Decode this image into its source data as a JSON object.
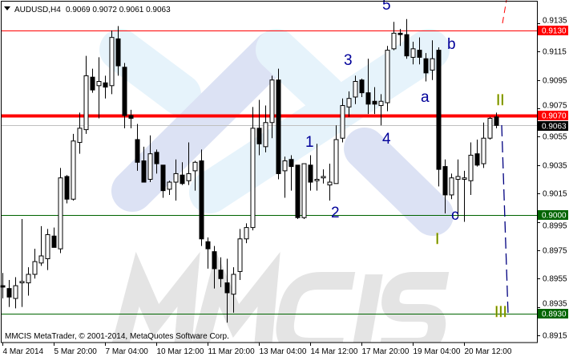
{
  "header": {
    "menu_icon": "triangle-down-icon",
    "symbol": "AUDUSD,H4",
    "ohlc": "0.9069 0.9072 0.9061 0.9063"
  },
  "copyright": "MMCIS MetaTrader, © 2001-2014, MetaQuotes Software Corp.",
  "watermark": "MMCIS",
  "colors": {
    "bull_body": "#ffffff",
    "bear_body": "#000000",
    "resistance": "#ff0000",
    "support": "#006400",
    "bid_line": "#c0c0c0",
    "forecast": "#000080",
    "logo_dark": "#dce2f4",
    "logo_light": "#e6f3fb"
  },
  "chart_data": {
    "type": "candlestick",
    "symbol": "AUDUSD",
    "timeframe": "H4",
    "ylim": [
      0.8907,
      0.9151
    ],
    "y_ticks": [
      "0.9135",
      "0.9115",
      "0.9095",
      "0.9075",
      "0.9055",
      "0.9035",
      "0.9015",
      "0.8995",
      "0.8975",
      "0.8955",
      "0.8935",
      "0.8915"
    ],
    "x_ticks": [
      "4 Mar 2014",
      "5 Mar 20:00",
      "7 Mar 04:00",
      "10 Mar 12:00",
      "11 Mar 20:00",
      "13 Mar 04:00",
      "14 Mar 12:00",
      "17 Mar 20:00",
      "19 Mar 04:00",
      "20 Mar 12:00"
    ],
    "x_tick_every_n_candles": 8,
    "candles_ohlc": [
      [
        0.895,
        0.8959,
        0.8941,
        0.8949
      ],
      [
        0.8948,
        0.8954,
        0.8935,
        0.8942
      ],
      [
        0.8941,
        0.8956,
        0.8934,
        0.895
      ],
      [
        0.8952,
        0.8997,
        0.8935,
        0.8953
      ],
      [
        0.8952,
        0.8963,
        0.8943,
        0.8958
      ],
      [
        0.8958,
        0.8976,
        0.8955,
        0.8967
      ],
      [
        0.8966,
        0.8992,
        0.8964,
        0.8971
      ],
      [
        0.8969,
        0.899,
        0.8961,
        0.8986
      ],
      [
        0.8985,
        0.8991,
        0.8977,
        0.8977
      ],
      [
        0.8976,
        0.9033,
        0.8973,
        0.9026
      ],
      [
        0.9027,
        0.9028,
        0.9008,
        0.9011
      ],
      [
        0.9011,
        0.9057,
        0.901,
        0.9052
      ],
      [
        0.9051,
        0.9072,
        0.9043,
        0.9061
      ],
      [
        0.906,
        0.9112,
        0.9057,
        0.9098
      ],
      [
        0.9097,
        0.9103,
        0.9086,
        0.9088
      ],
      [
        0.9091,
        0.9111,
        0.9068,
        0.9094
      ],
      [
        0.9093,
        0.9098,
        0.9082,
        0.909
      ],
      [
        0.9091,
        0.913,
        0.9085,
        0.9125
      ],
      [
        0.9124,
        0.9133,
        0.9098,
        0.9105
      ],
      [
        0.9104,
        0.9107,
        0.9061,
        0.907
      ],
      [
        0.907,
        0.9074,
        0.9061,
        0.9068
      ],
      [
        0.9053,
        0.9064,
        0.9031,
        0.9037
      ],
      [
        0.9038,
        0.9048,
        0.9023,
        0.9023
      ],
      [
        0.9025,
        0.9056,
        0.9023,
        0.9043
      ],
      [
        0.9044,
        0.9046,
        0.9029,
        0.9036
      ],
      [
        0.9035,
        0.9035,
        0.9012,
        0.9017
      ],
      [
        0.9018,
        0.9024,
        0.9014,
        0.9023
      ],
      [
        0.9023,
        0.9039,
        0.901,
        0.9029
      ],
      [
        0.9028,
        0.9037,
        0.9021,
        0.9022
      ],
      [
        0.9024,
        0.9051,
        0.9021,
        0.9029
      ],
      [
        0.9031,
        0.9038,
        0.9017,
        0.9037
      ],
      [
        0.9038,
        0.9046,
        0.8978,
        0.8983
      ],
      [
        0.8981,
        0.8984,
        0.8962,
        0.8976
      ],
      [
        0.8974,
        0.8978,
        0.8948,
        0.8962
      ],
      [
        0.8961,
        0.897,
        0.8949,
        0.8955
      ],
      [
        0.8952,
        0.8969,
        0.8924,
        0.8945
      ],
      [
        0.8944,
        0.8963,
        0.8931,
        0.8958
      ],
      [
        0.896,
        0.899,
        0.8954,
        0.8983
      ],
      [
        0.8983,
        0.8994,
        0.898,
        0.8991
      ],
      [
        0.8991,
        0.9076,
        0.8989,
        0.9061
      ],
      [
        0.9061,
        0.9081,
        0.9042,
        0.905
      ],
      [
        0.9048,
        0.9077,
        0.9044,
        0.9065
      ],
      [
        0.9065,
        0.9098,
        0.9054,
        0.9095
      ],
      [
        0.9095,
        0.9103,
        0.9025,
        0.9029
      ],
      [
        0.9031,
        0.9041,
        0.9012,
        0.9038
      ],
      [
        0.9039,
        0.9042,
        0.9017,
        0.9034
      ],
      [
        0.9035,
        0.9035,
        0.8997,
        0.8998
      ],
      [
        0.8998,
        0.9036,
        0.8997,
        0.9036
      ],
      [
        0.9035,
        0.9042,
        0.9017,
        0.9023
      ],
      [
        0.9024,
        0.905,
        0.9017,
        0.9025
      ],
      [
        0.9026,
        0.9032,
        0.9022,
        0.9027
      ],
      [
        0.9021,
        0.9036,
        0.901,
        0.9023
      ],
      [
        0.9022,
        0.9063,
        0.9022,
        0.9053
      ],
      [
        0.9054,
        0.9082,
        0.9051,
        0.9077
      ],
      [
        0.9076,
        0.9087,
        0.9069,
        0.9082
      ],
      [
        0.9083,
        0.9098,
        0.9078,
        0.9094
      ],
      [
        0.9095,
        0.9096,
        0.9083,
        0.9086
      ],
      [
        0.9086,
        0.911,
        0.9071,
        0.9078
      ],
      [
        0.908,
        0.909,
        0.9071,
        0.9078
      ],
      [
        0.9077,
        0.9085,
        0.9063,
        0.908
      ],
      [
        0.9079,
        0.9119,
        0.9073,
        0.9116
      ],
      [
        0.9117,
        0.9136,
        0.9116,
        0.9128
      ],
      [
        0.9128,
        0.9131,
        0.9119,
        0.9127
      ],
      [
        0.9127,
        0.9138,
        0.911,
        0.9112
      ],
      [
        0.9111,
        0.9122,
        0.9106,
        0.9117
      ],
      [
        0.9116,
        0.9125,
        0.9106,
        0.9111
      ],
      [
        0.911,
        0.9114,
        0.9094,
        0.91
      ],
      [
        0.9102,
        0.9123,
        0.9095,
        0.911
      ],
      [
        0.9116,
        0.9118,
        0.902,
        0.9032
      ],
      [
        0.9034,
        0.9039,
        0.9001,
        0.9014
      ],
      [
        0.9014,
        0.9029,
        0.9011,
        0.9026
      ],
      [
        0.9025,
        0.9039,
        0.8998,
        0.9027
      ],
      [
        0.9025,
        0.9031,
        0.8995,
        0.9026
      ],
      [
        0.9024,
        0.9051,
        0.9014,
        0.9042
      ],
      [
        0.9043,
        0.9053,
        0.9034,
        0.9035
      ],
      [
        0.9036,
        0.9065,
        0.9033,
        0.9054
      ],
      [
        0.9054,
        0.9069,
        0.9053,
        0.9068
      ],
      [
        0.9069,
        0.9072,
        0.9061,
        0.9063
      ]
    ],
    "horizontal_levels": [
      {
        "price": 0.913,
        "label": "0.9130",
        "color": "#ff0000",
        "style": "thin"
      },
      {
        "price": 0.907,
        "label": "0.9070",
        "color": "#ff0000",
        "style": "thick"
      },
      {
        "price": 0.9063,
        "label": "0.9063",
        "color": "#000000",
        "style": "bid"
      },
      {
        "price": 0.9,
        "label": "0.9000",
        "color": "#006400",
        "style": "thin"
      },
      {
        "price": 0.893,
        "label": "0.8930",
        "color": "#006400",
        "style": "thin"
      }
    ],
    "wave_labels": {
      "w1": "1",
      "w2": "2",
      "w3": "3",
      "w4": "4",
      "w5": "5",
      "wa": "a",
      "wb": "b",
      "wc": "c",
      "wI": "I",
      "wII": "II",
      "wIII": "III"
    },
    "forecast_path": {
      "from": 0.9063,
      "to": 0.893
    }
  }
}
